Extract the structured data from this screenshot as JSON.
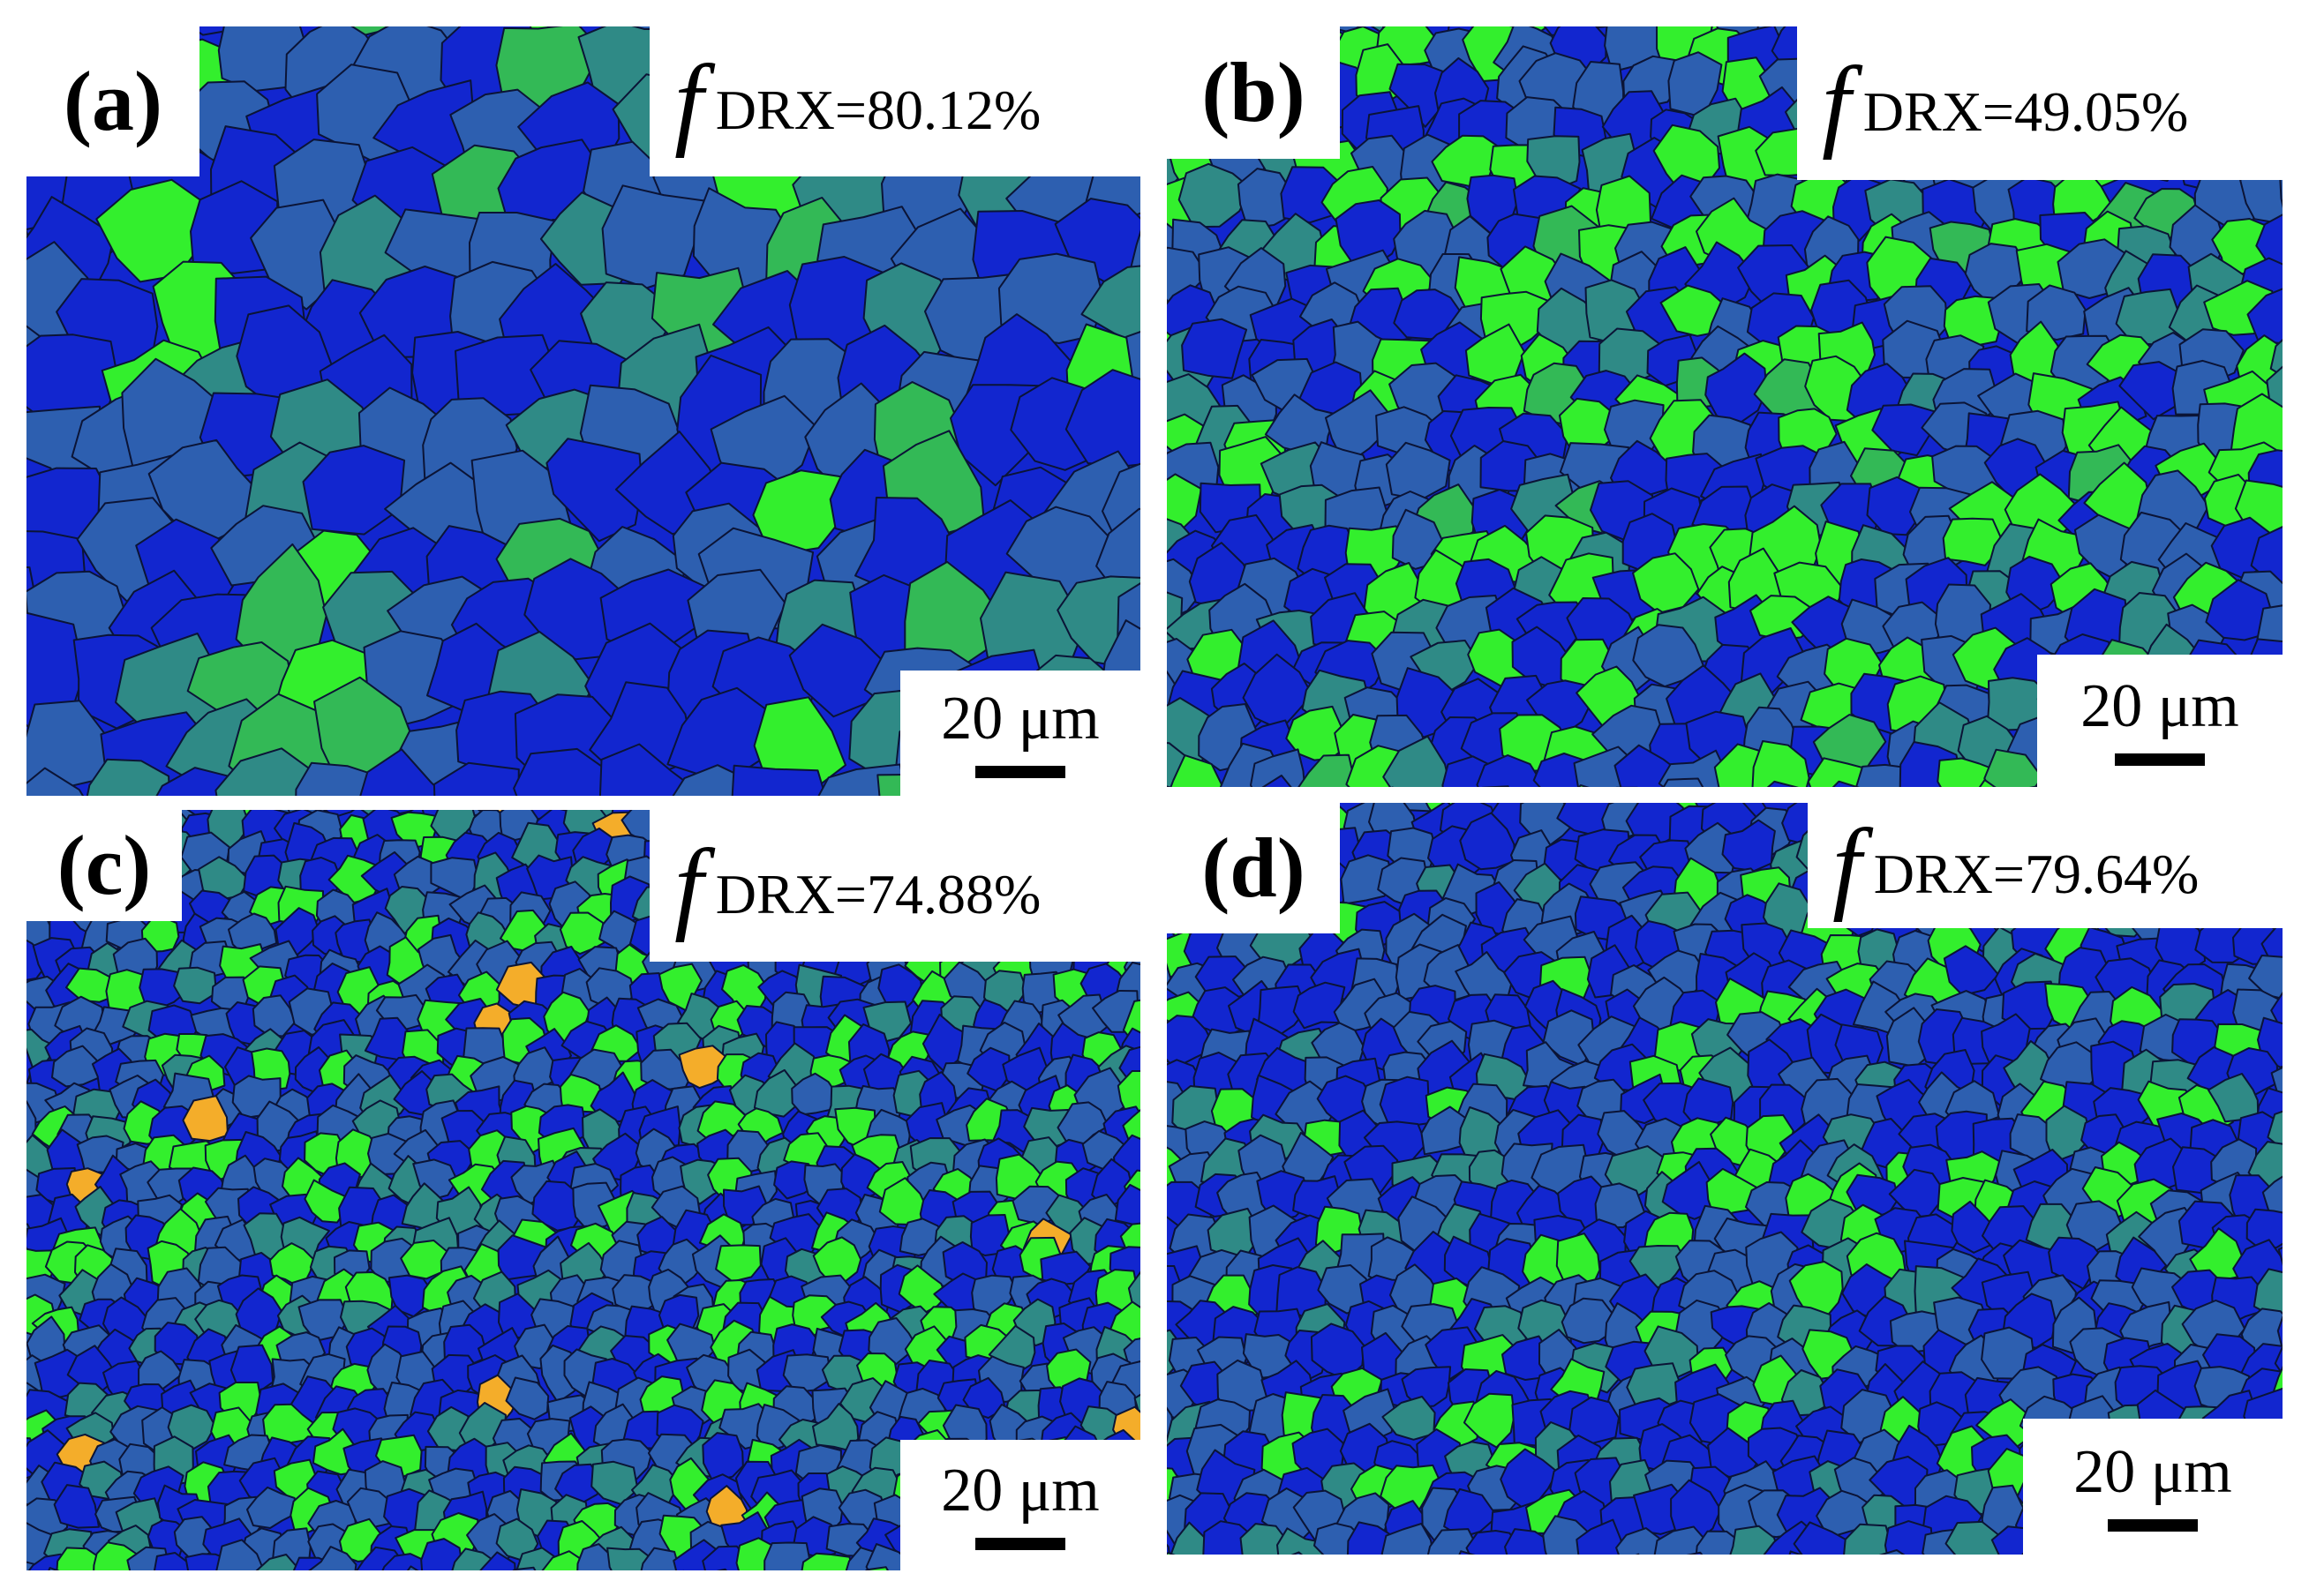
{
  "colors": {
    "grain_blue": "#1226cf",
    "grain_slate": "#2d5fb0",
    "grain_teal": "#2f8a86",
    "grain_green": "#33b956",
    "grain_lime": "#33ef2d",
    "grain_orange": "#f4ad2a",
    "boundary": "#0b1436"
  },
  "panels": [
    {
      "label": "(a)",
      "f_symbol": "f",
      "fraction_text": "DRX=80.12%",
      "scale_label": "20 μm",
      "seed": 11,
      "grain_size": 90
    },
    {
      "label": "(b)",
      "f_symbol": "f",
      "fraction_text": "DRX=49.05%",
      "scale_label": "20 μm",
      "seed": 23,
      "grain_size": 56
    },
    {
      "label": "(c)",
      "f_symbol": "f",
      "fraction_text": "DRX=74.88%",
      "scale_label": "20 μm",
      "seed": 37,
      "grain_size": 40
    },
    {
      "label": "(d)",
      "f_symbol": "f",
      "fraction_text": "DRX=79.64%",
      "scale_label": "20 μm",
      "seed": 51,
      "grain_size": 46
    }
  ]
}
